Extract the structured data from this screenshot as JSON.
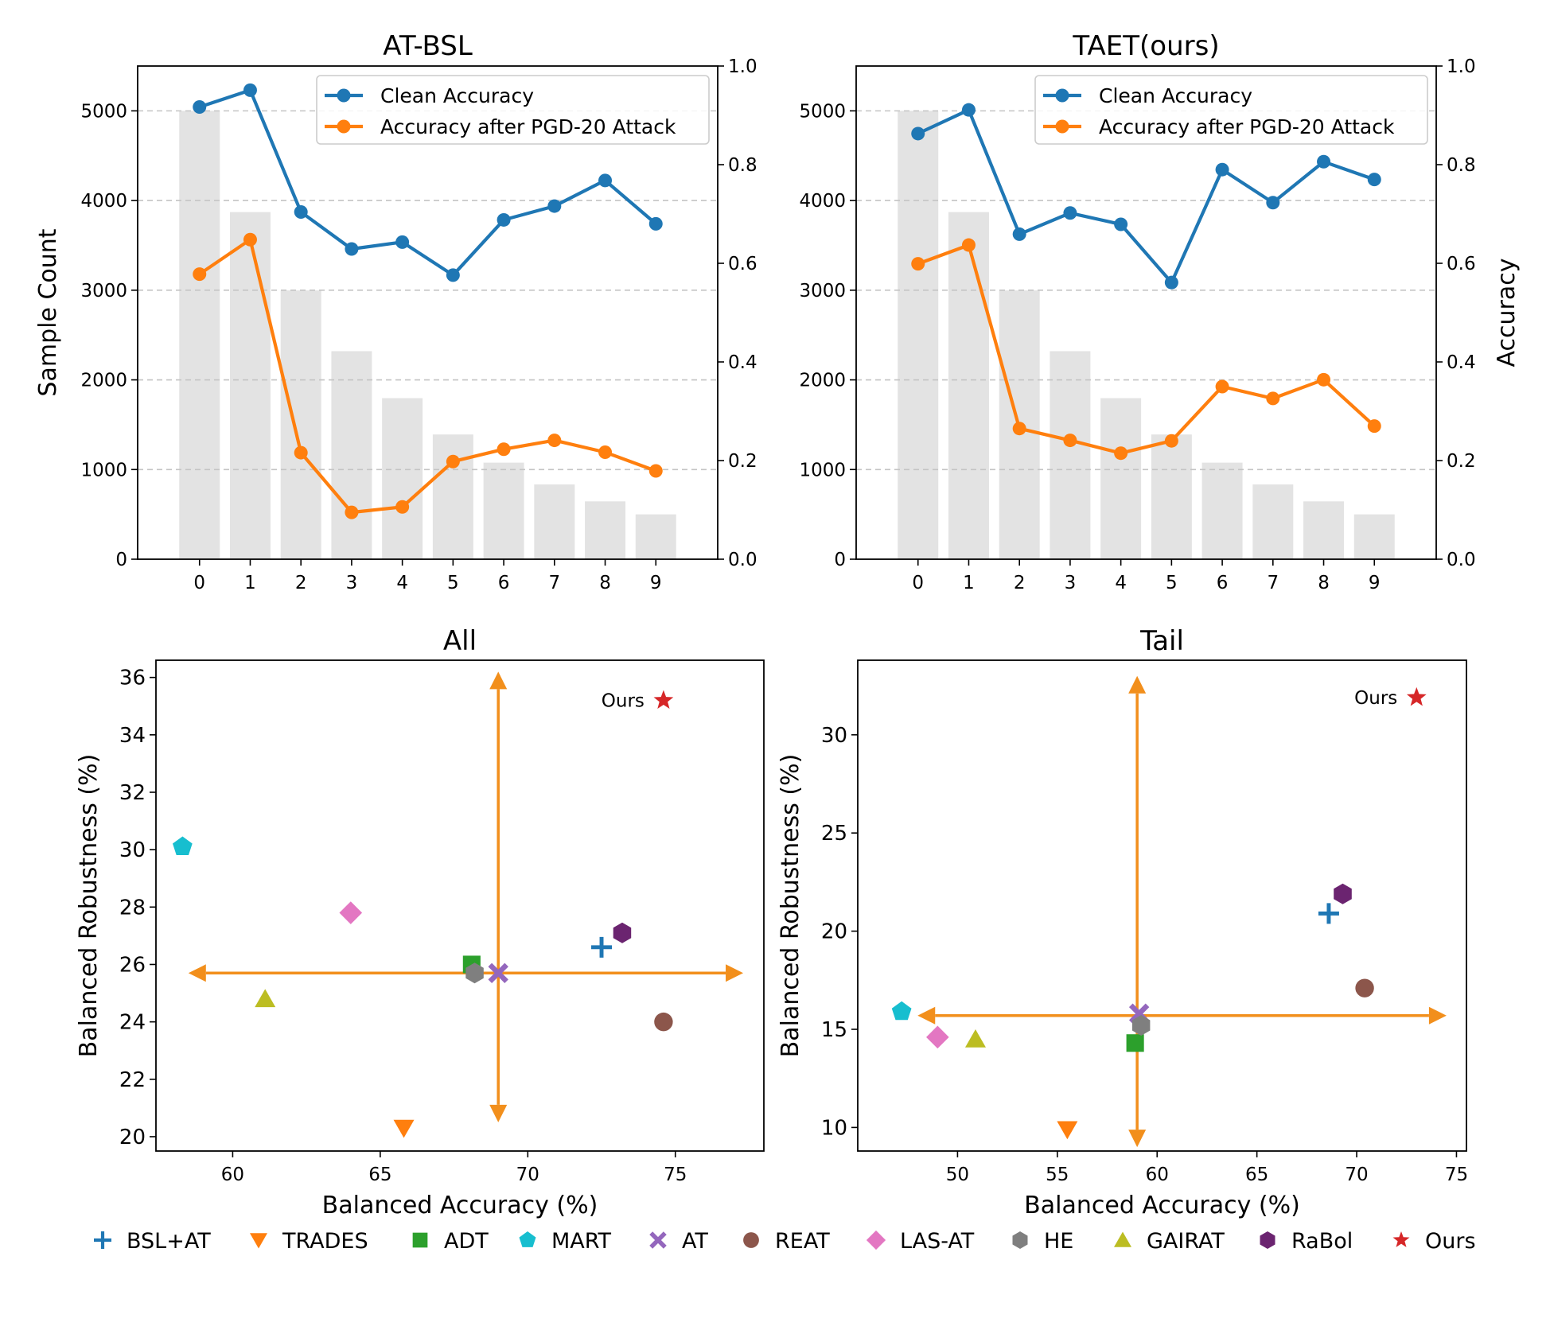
{
  "colors": {
    "clean": "#1f77b4",
    "pgd": "#ff7f0e",
    "bars": "#e3e3e3",
    "grid": "#c4c4c4",
    "arrows": "#f28f1c"
  },
  "chart_data": [
    {
      "type": "bar+line",
      "title": "AT-BSL",
      "xlabel": "",
      "ylabel": "Sample Count",
      "y2label": "",
      "categories": [
        "0",
        "1",
        "2",
        "3",
        "4",
        "5",
        "6",
        "7",
        "8",
        "9"
      ],
      "bar_values": [
        5000,
        3871,
        2997,
        2320,
        1796,
        1391,
        1077,
        834,
        645,
        500
      ],
      "ylim": [
        0,
        5500
      ],
      "y2lim": [
        0,
        1.0
      ],
      "yticks": [
        "0",
        "1000",
        "2000",
        "3000",
        "4000",
        "5000"
      ],
      "y2ticks": [
        "0.0",
        "0.2",
        "0.4",
        "0.6",
        "0.8",
        "1.0"
      ],
      "series": [
        {
          "name": "Clean Accuracy",
          "axis": "right",
          "values": [
            0.917,
            0.951,
            0.704,
            0.629,
            0.643,
            0.576,
            0.688,
            0.716,
            0.768,
            0.68
          ]
        },
        {
          "name": "Accuracy after PGD-20 Attack",
          "axis": "right",
          "values": [
            0.578,
            0.648,
            0.216,
            0.095,
            0.106,
            0.198,
            0.223,
            0.241,
            0.217,
            0.179
          ]
        }
      ],
      "legend": "top-right"
    },
    {
      "type": "bar+line",
      "title": "TAET(ours)",
      "xlabel": "",
      "ylabel": "",
      "y2label": "Accuracy",
      "categories": [
        "0",
        "1",
        "2",
        "3",
        "4",
        "5",
        "6",
        "7",
        "8",
        "9"
      ],
      "bar_values": [
        5000,
        3871,
        2997,
        2320,
        1796,
        1391,
        1077,
        834,
        645,
        500
      ],
      "ylim": [
        0,
        5500
      ],
      "y2lim": [
        0,
        1.0
      ],
      "yticks": [
        "0",
        "1000",
        "2000",
        "3000",
        "4000",
        "5000"
      ],
      "y2ticks": [
        "0.0",
        "0.2",
        "0.4",
        "0.6",
        "0.8",
        "1.0"
      ],
      "series": [
        {
          "name": "Clean Accuracy",
          "axis": "right",
          "values": [
            0.863,
            0.911,
            0.659,
            0.702,
            0.679,
            0.561,
            0.79,
            0.723,
            0.806,
            0.77
          ]
        },
        {
          "name": "Accuracy after PGD-20 Attack",
          "axis": "right",
          "values": [
            0.599,
            0.637,
            0.265,
            0.241,
            0.215,
            0.24,
            0.35,
            0.326,
            0.364,
            0.27
          ]
        }
      ],
      "legend": "top-right"
    },
    {
      "type": "scatter",
      "title": "All",
      "xlabel": "Balanced Accuracy (%)",
      "ylabel": "Balanced Robustness (%)",
      "xlim": [
        57.4,
        78.0
      ],
      "ylim": [
        19.5,
        36.6
      ],
      "xticks": [
        60,
        65,
        70,
        75
      ],
      "yticks": [
        20,
        22,
        24,
        26,
        28,
        30,
        32,
        34,
        36
      ],
      "crosshair": {
        "x": 69.0,
        "y": 25.7,
        "x_range": [
          58.5,
          77.3
        ],
        "y_range": [
          20.5,
          36.2
        ]
      },
      "points": [
        {
          "method": "BSL+AT",
          "x": 72.5,
          "y": 26.6
        },
        {
          "method": "TRADES",
          "x": 65.8,
          "y": 20.3
        },
        {
          "method": "ADT",
          "x": 68.1,
          "y": 26.0
        },
        {
          "method": "MART",
          "x": 58.3,
          "y": 30.1
        },
        {
          "method": "AT",
          "x": 69.0,
          "y": 25.7
        },
        {
          "method": "REAT",
          "x": 74.6,
          "y": 24.0
        },
        {
          "method": "LAS-AT",
          "x": 64.0,
          "y": 27.8
        },
        {
          "method": "HE",
          "x": 68.2,
          "y": 25.7
        },
        {
          "method": "GAIRAT",
          "x": 61.1,
          "y": 24.8
        },
        {
          "method": "RaBol",
          "x": 73.2,
          "y": 27.1
        },
        {
          "method": "Ours",
          "x": 74.6,
          "y": 35.2
        }
      ],
      "annotation": "Ours"
    },
    {
      "type": "scatter",
      "title": "Tail",
      "xlabel": "Balanced Accuracy (%)",
      "ylabel": "Balanced Robustness (%)",
      "xlim": [
        45.0,
        75.5
      ],
      "ylim": [
        8.8,
        33.8
      ],
      "xticks": [
        50,
        55,
        60,
        65,
        70,
        75
      ],
      "yticks": [
        10,
        15,
        20,
        25,
        30
      ],
      "crosshair": {
        "x": 59.0,
        "y": 15.7,
        "x_range": [
          48.0,
          74.5
        ],
        "y_range": [
          9.0,
          33.0
        ]
      },
      "points": [
        {
          "method": "BSL+AT",
          "x": 68.6,
          "y": 20.9
        },
        {
          "method": "TRADES",
          "x": 55.5,
          "y": 9.9
        },
        {
          "method": "ADT",
          "x": 58.9,
          "y": 14.3
        },
        {
          "method": "MART",
          "x": 47.2,
          "y": 15.9
        },
        {
          "method": "AT",
          "x": 59.1,
          "y": 15.8
        },
        {
          "method": "REAT",
          "x": 70.4,
          "y": 17.1
        },
        {
          "method": "LAS-AT",
          "x": 49.0,
          "y": 14.6
        },
        {
          "method": "HE",
          "x": 59.2,
          "y": 15.2
        },
        {
          "method": "GAIRAT",
          "x": 50.9,
          "y": 14.5
        },
        {
          "method": "RaBol",
          "x": 69.3,
          "y": 21.9
        },
        {
          "method": "Ours",
          "x": 73.0,
          "y": 31.9
        }
      ],
      "annotation": "Ours"
    }
  ],
  "legend": [
    {
      "name": "BSL+AT",
      "marker": "plus",
      "color": "#1f77b4"
    },
    {
      "name": "TRADES",
      "marker": "triangle-down",
      "color": "#ff7f0e"
    },
    {
      "name": "ADT",
      "marker": "square",
      "color": "#2ca02c"
    },
    {
      "name": "MART",
      "marker": "pentagon",
      "color": "#17becf"
    },
    {
      "name": "AT",
      "marker": "x",
      "color": "#9467bd"
    },
    {
      "name": "REAT",
      "marker": "circle",
      "color": "#8c564b"
    },
    {
      "name": "LAS-AT",
      "marker": "diamond",
      "color": "#e377c2"
    },
    {
      "name": "HE",
      "marker": "hexagon",
      "color": "#7f7f7f"
    },
    {
      "name": "GAIRAT",
      "marker": "triangle-up",
      "color": "#bcbd22"
    },
    {
      "name": "RaBol",
      "marker": "hexagon",
      "color": "#6b2470"
    },
    {
      "name": "Ours",
      "marker": "star",
      "color": "#d62728"
    }
  ]
}
